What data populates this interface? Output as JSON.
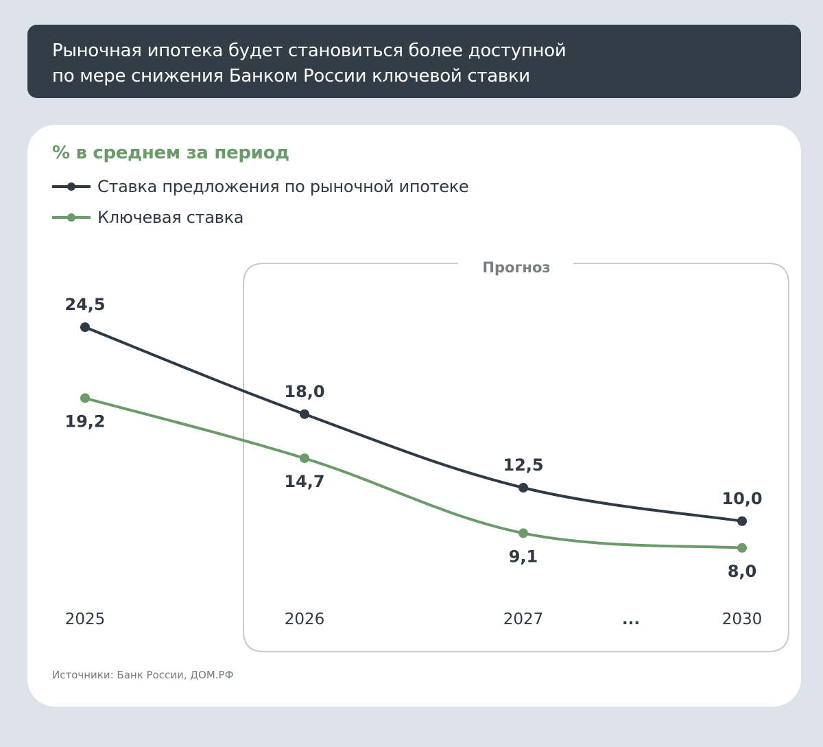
{
  "header": {
    "title_line1": "Рыночная ипотека будет становиться более доступной",
    "title_line2": "по мере снижения Банком России ключевой ставки"
  },
  "colors": {
    "background": "#dde3ea",
    "header": "#323d46",
    "mortgage": "#2f3a44",
    "key_rate": "#6c9a6b"
  },
  "chart_data": {
    "type": "line",
    "subtitle": "% в среднем за период",
    "categories": [
      "2025",
      "2026",
      "2027",
      "2030"
    ],
    "gap_marker": "...",
    "forecast_label": "Прогноз",
    "forecast_from": "2026",
    "legend_placement": "top-left",
    "grid": false,
    "series": [
      {
        "name": "Ставка предложения по рыночной ипотеке",
        "color": "#2f3a44",
        "values": [
          24.5,
          18.0,
          12.5,
          10.0
        ],
        "labels": [
          "24,5",
          "18,0",
          "12,5",
          "10,0"
        ]
      },
      {
        "name": "Ключевая ставка",
        "color": "#6c9a6b",
        "values": [
          19.2,
          14.7,
          9.1,
          8.0
        ],
        "labels": [
          "19,2",
          "14,7",
          "9,1",
          "8,0"
        ]
      }
    ]
  },
  "source": "Источники: Банк России, ДОМ.РФ"
}
